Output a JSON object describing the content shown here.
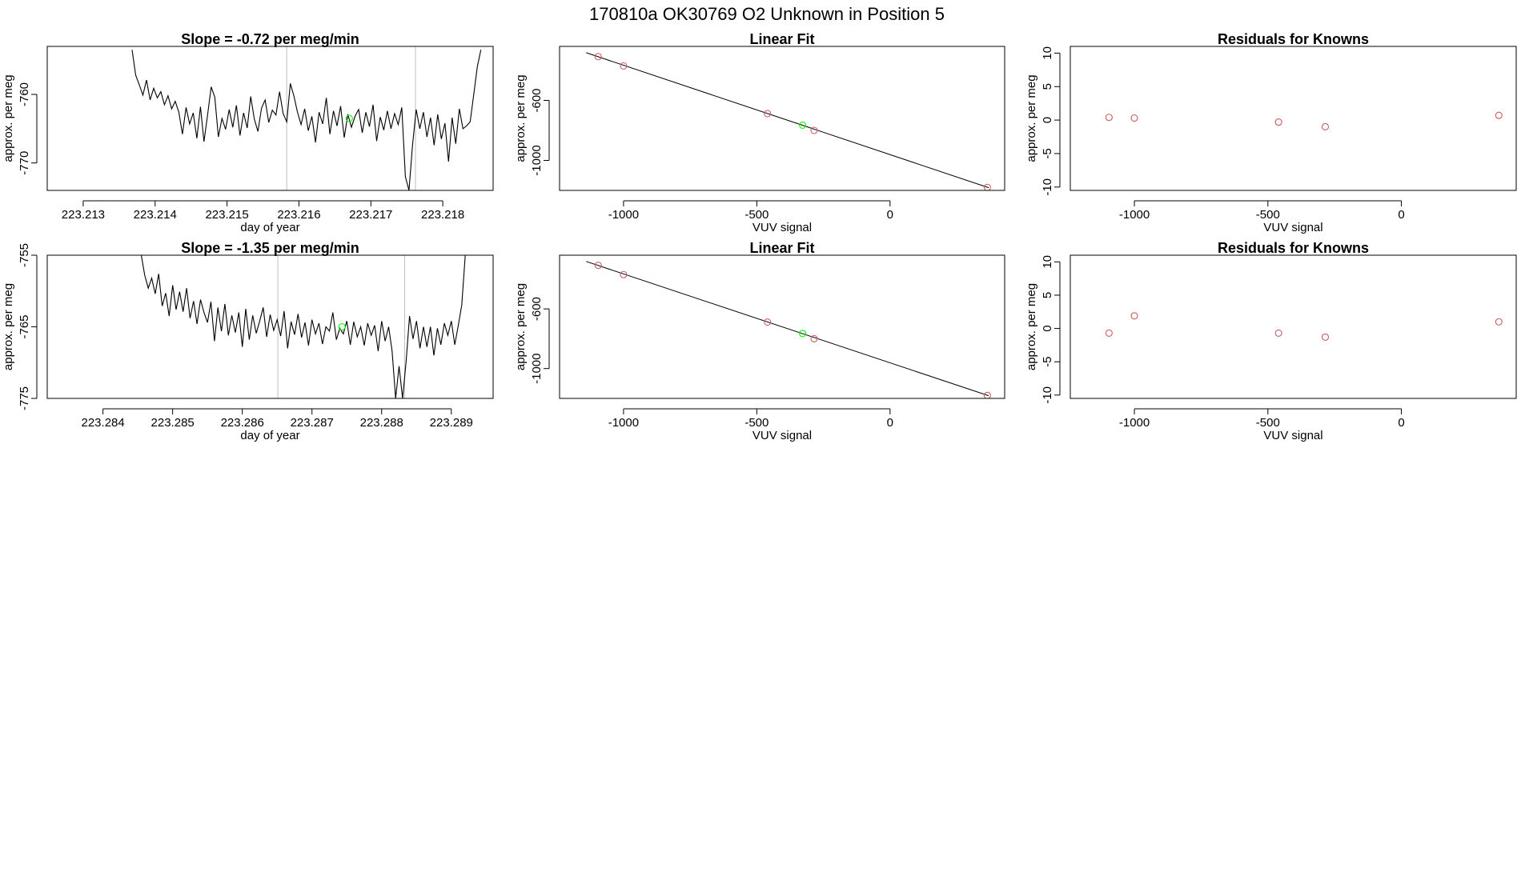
{
  "figure": {
    "title": "170810a      OK30769   O2 Unknown in Position  5"
  },
  "colors": {
    "trace": "#000000",
    "known_points": "#cd5c5c",
    "unknown_point": "#00ff00",
    "marker_lines": "#bebebe",
    "fit_line": "#000000"
  },
  "chart_data": [
    {
      "type": "line",
      "title": "Slope =  -0.72  per meg/min",
      "xlabel": "day of year",
      "ylabel": "approx. per meg",
      "x_ticks": [
        "223.213",
        "223.214",
        "223.215",
        "223.216",
        "223.217",
        "223.218"
      ],
      "x_tick_values": [
        223.213,
        223.214,
        223.215,
        223.216,
        223.217,
        223.218
      ],
      "y_ticks": [
        "-760",
        "-770"
      ],
      "y_tick_values": [
        -760,
        -770
      ],
      "xlim": [
        223.2125,
        223.2187
      ],
      "ylim": [
        -774,
        -753
      ],
      "vlines": [
        223.21583,
        223.21762
      ],
      "unknown_point": {
        "x": 223.2167,
        "y": -763.5
      },
      "x": [
        223.21368,
        223.21373,
        223.21378,
        223.21383,
        223.21388,
        223.21393,
        223.21398,
        223.21403,
        223.21408,
        223.21413,
        223.21418,
        223.21423,
        223.21428,
        223.21433,
        223.21438,
        223.21443,
        223.21448,
        223.21453,
        223.21458,
        223.21463,
        223.21468,
        223.21473,
        223.21478,
        223.21483,
        223.21488,
        223.21493,
        223.21498,
        223.21503,
        223.21508,
        223.21513,
        223.21518,
        223.21523,
        223.21528,
        223.21533,
        223.21538,
        223.21543,
        223.21548,
        223.21553,
        223.21558,
        223.21563,
        223.21568,
        223.21573,
        223.21578,
        223.21583,
        223.21588,
        223.21593,
        223.21598,
        223.21603,
        223.21608,
        223.21613,
        223.21618,
        223.21623,
        223.21628,
        223.21633,
        223.21638,
        223.21643,
        223.21648,
        223.21653,
        223.21658,
        223.21663,
        223.21668,
        223.21673,
        223.21678,
        223.21683,
        223.21688,
        223.21693,
        223.21698,
        223.21703,
        223.21708,
        223.21713,
        223.21718,
        223.21723,
        223.21728,
        223.21733,
        223.21738,
        223.21743,
        223.21748,
        223.21753,
        223.21758,
        223.21763,
        223.21768,
        223.21773,
        223.21778,
        223.21783,
        223.21788,
        223.21793,
        223.21798,
        223.21803,
        223.21808,
        223.21813,
        223.21818,
        223.21823,
        223.21828,
        223.21833,
        223.21838,
        223.21843,
        223.21848,
        223.21853
      ],
      "y": [
        -753.5,
        -757.2,
        -758.6,
        -760.1,
        -757.9,
        -760.8,
        -759.1,
        -760.5,
        -759.6,
        -761.5,
        -760.2,
        -762.1,
        -761.0,
        -762.6,
        -765.8,
        -761.9,
        -764.3,
        -762.7,
        -766.4,
        -761.8,
        -766.9,
        -763.0,
        -758.9,
        -760.4,
        -766.2,
        -763.5,
        -765.1,
        -762.2,
        -764.8,
        -761.6,
        -766.0,
        -762.7,
        -764.9,
        -760.3,
        -763.6,
        -765.4,
        -762.0,
        -760.8,
        -764.1,
        -762.3,
        -763.0,
        -759.6,
        -762.8,
        -764.0,
        -758.4,
        -760.2,
        -762.6,
        -764.4,
        -762.1,
        -765.3,
        -763.2,
        -767.0,
        -762.6,
        -764.3,
        -760.5,
        -765.8,
        -762.4,
        -764.6,
        -761.7,
        -766.3,
        -762.9,
        -764.8,
        -763.2,
        -762.2,
        -765.6,
        -762.6,
        -764.7,
        -761.5,
        -766.8,
        -763.3,
        -765.2,
        -762.4,
        -765.0,
        -762.8,
        -764.4,
        -761.9,
        -772.0,
        -774.0,
        -767.3,
        -762.2,
        -765.0,
        -762.6,
        -766.2,
        -763.4,
        -767.4,
        -762.9,
        -766.5,
        -764.2,
        -769.8,
        -763.4,
        -767.2,
        -762.1,
        -765.0,
        -764.6,
        -764.0,
        -760.1,
        -756.0,
        -753.5
      ]
    },
    {
      "type": "scatter",
      "title": "Linear Fit",
      "xlabel": "VUV signal",
      "ylabel": "approx. per meg",
      "x_ticks": [
        "-1000",
        "-500",
        "0"
      ],
      "x_tick_values": [
        -1000,
        -500,
        0
      ],
      "y_ticks": [
        "-600",
        "-1000"
      ],
      "y_tick_values": [
        -600,
        -1000
      ],
      "xlim": [
        -1240,
        430
      ],
      "ylim": [
        -1200,
        -240
      ],
      "known_points": {
        "x": [
          -1095,
          -1000,
          -460,
          -285,
          365
        ],
        "y": [
          -308,
          -370,
          -688,
          -800,
          -1180
        ]
      },
      "unknown_point": {
        "x": -328,
        "y": -765
      },
      "fit_line": {
        "x": [
          -1140,
          370
        ],
        "y": [
          -282,
          -1182
        ]
      }
    },
    {
      "type": "scatter",
      "title": "Residuals for Knowns",
      "xlabel": "VUV signal",
      "ylabel": "approx. per meg",
      "x_ticks": [
        "-1000",
        "-500",
        "0"
      ],
      "x_tick_values": [
        -1000,
        -500,
        0
      ],
      "y_ticks": [
        "10",
        "5",
        "0",
        "-5",
        "-10"
      ],
      "y_tick_values": [
        10,
        5,
        0,
        -5,
        -10
      ],
      "xlim": [
        -1240,
        430
      ],
      "ylim": [
        -10.5,
        11
      ],
      "known_points": {
        "x": [
          -1095,
          -1000,
          -460,
          -285,
          365
        ],
        "y": [
          0.4,
          0.3,
          -0.3,
          -1.0,
          0.7
        ]
      }
    },
    {
      "type": "line",
      "title": "Slope =  -1.35  per meg/min",
      "xlabel": "day of year",
      "ylabel": "approx. per meg",
      "x_ticks": [
        "223.284",
        "223.285",
        "223.286",
        "223.287",
        "223.288",
        "223.289"
      ],
      "x_tick_values": [
        223.284,
        223.285,
        223.286,
        223.287,
        223.288,
        223.289
      ],
      "y_ticks": [
        "-755",
        "-765",
        "-775"
      ],
      "y_tick_values": [
        -755,
        -765,
        -775
      ],
      "xlim": [
        223.2832,
        223.2896
      ],
      "ylim": [
        -775,
        -755
      ],
      "vlines": [
        223.28651,
        223.28833
      ],
      "unknown_point": {
        "x": 223.28743,
        "y": -765
      },
      "x": [
        223.28455,
        223.2846,
        223.28465,
        223.2847,
        223.28475,
        223.2848,
        223.28485,
        223.2849,
        223.28495,
        223.285,
        223.28505,
        223.2851,
        223.28515,
        223.2852,
        223.28525,
        223.2853,
        223.28535,
        223.2854,
        223.28545,
        223.2855,
        223.28555,
        223.2856,
        223.28565,
        223.2857,
        223.28575,
        223.2858,
        223.28585,
        223.2859,
        223.28595,
        223.286,
        223.28605,
        223.2861,
        223.28615,
        223.2862,
        223.28625,
        223.2863,
        223.28635,
        223.2864,
        223.28645,
        223.2865,
        223.28655,
        223.2866,
        223.28665,
        223.2867,
        223.28675,
        223.2868,
        223.28685,
        223.2869,
        223.28695,
        223.287,
        223.28705,
        223.2871,
        223.28715,
        223.2872,
        223.28725,
        223.2873,
        223.28735,
        223.2874,
        223.28745,
        223.2875,
        223.28755,
        223.2876,
        223.28765,
        223.2877,
        223.28775,
        223.2878,
        223.28785,
        223.2879,
        223.28795,
        223.288,
        223.28805,
        223.2881,
        223.28815,
        223.2882,
        223.28825,
        223.2883,
        223.28835,
        223.2884,
        223.28845,
        223.2885,
        223.28855,
        223.2886,
        223.28865,
        223.2887,
        223.28875,
        223.2888,
        223.28885,
        223.2889,
        223.28895,
        223.289,
        223.28905,
        223.2891,
        223.28915,
        223.2892
      ],
      "y": [
        -755,
        -757.8,
        -759.6,
        -758.2,
        -760.4,
        -757.6,
        -762.1,
        -760.3,
        -763.5,
        -759.2,
        -762.6,
        -760.1,
        -762.9,
        -759.6,
        -763.8,
        -761.4,
        -764.6,
        -761.2,
        -763.0,
        -764.4,
        -761.5,
        -767.0,
        -762.3,
        -765.6,
        -761.8,
        -766.2,
        -763.4,
        -765.8,
        -763.0,
        -767.8,
        -762.5,
        -766.8,
        -763.4,
        -765.9,
        -764.2,
        -762.3,
        -766.4,
        -763.3,
        -765.5,
        -764.0,
        -766.3,
        -762.8,
        -768.0,
        -764.3,
        -766.1,
        -763.2,
        -766.5,
        -764.4,
        -767.6,
        -764.0,
        -766.0,
        -764.5,
        -767.4,
        -765.0,
        -765.6,
        -763.0,
        -766.8,
        -765.2,
        -766.0,
        -764.2,
        -767.5,
        -764.3,
        -766.4,
        -765.0,
        -767.6,
        -764.5,
        -766.2,
        -764.8,
        -768.4,
        -764.2,
        -767.0,
        -765.0,
        -768.4,
        -775.0,
        -770.5,
        -775.0,
        -770.0,
        -763.5,
        -766.7,
        -764.2,
        -768.0,
        -765.0,
        -767.8,
        -765.0,
        -769.0,
        -765.2,
        -767.5,
        -764.5,
        -766.2,
        -764.2,
        -767.5,
        -764.8,
        -762.0,
        -755.0
      ]
    },
    {
      "type": "scatter",
      "title": "Linear Fit",
      "xlabel": "VUV signal",
      "ylabel": "approx. per meg",
      "x_ticks": [
        "-1000",
        "-500",
        "0"
      ],
      "x_tick_values": [
        -1000,
        -500,
        0
      ],
      "y_ticks": [
        "-600",
        "-1000"
      ],
      "y_tick_values": [
        -600,
        -1000
      ],
      "xlim": [
        -1240,
        430
      ],
      "ylim": [
        -1200,
        -240
      ],
      "known_points": {
        "x": [
          -1095,
          -1000,
          -460,
          -285,
          365
        ],
        "y": [
          -308,
          -370,
          -688,
          -800,
          -1180
        ]
      },
      "unknown_point": {
        "x": -328,
        "y": -765
      },
      "fit_line": {
        "x": [
          -1140,
          370
        ],
        "y": [
          -282,
          -1182
        ]
      }
    },
    {
      "type": "scatter",
      "title": "Residuals for Knowns",
      "xlabel": "VUV signal",
      "ylabel": "approx. per meg",
      "x_ticks": [
        "-1000",
        "-500",
        "0"
      ],
      "x_tick_values": [
        -1000,
        -500,
        0
      ],
      "y_ticks": [
        "10",
        "5",
        "0",
        "-5",
        "-10"
      ],
      "y_tick_values": [
        10,
        5,
        0,
        -5,
        -10
      ],
      "xlim": [
        -1240,
        430
      ],
      "ylim": [
        -10.5,
        11
      ],
      "known_points": {
        "x": [
          -1095,
          -1000,
          -460,
          -285,
          365
        ],
        "y": [
          -0.7,
          1.9,
          -0.7,
          -1.3,
          1.0
        ]
      }
    }
  ]
}
